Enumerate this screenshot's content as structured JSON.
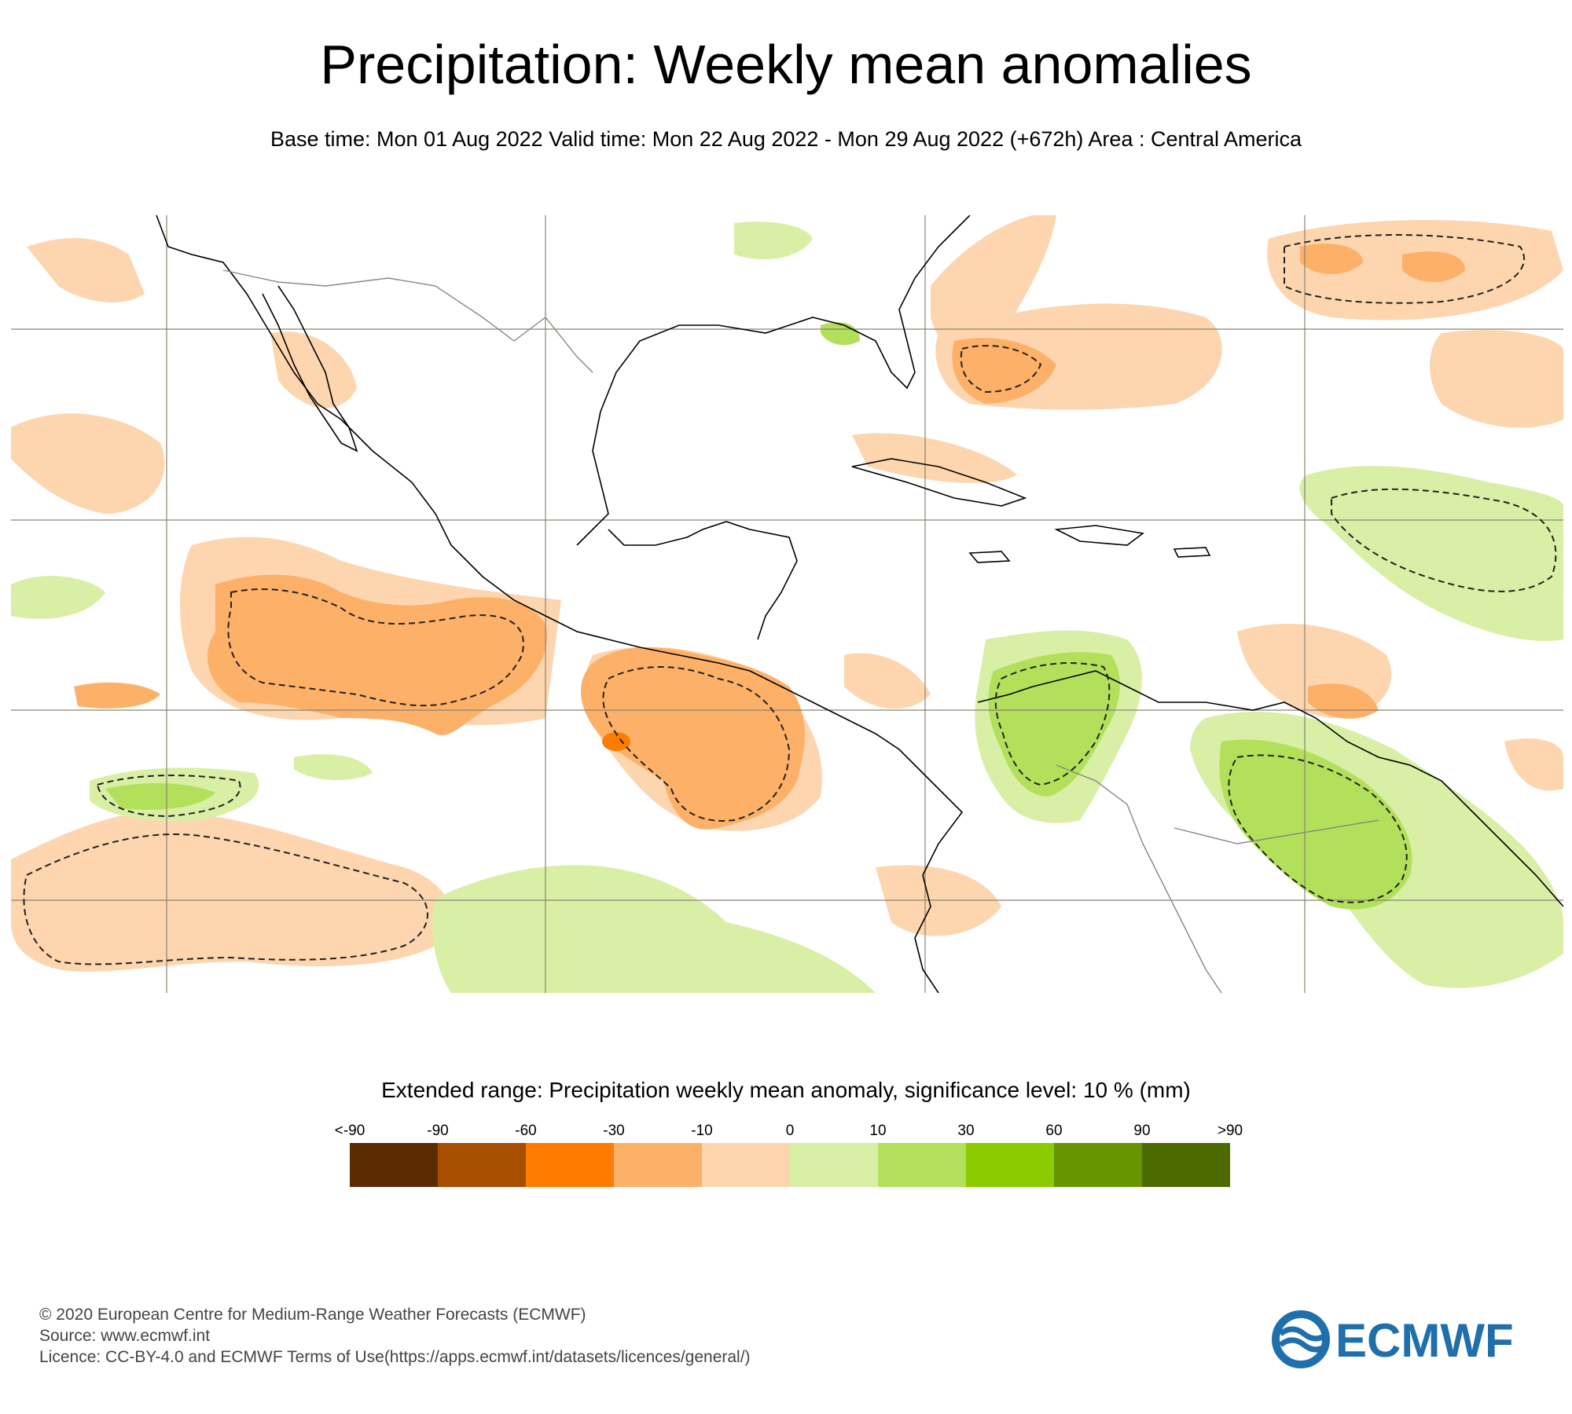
{
  "title": "Precipitation: Weekly mean anomalies",
  "subtitle": "Base time: Mon 01 Aug 2022 Valid time: Mon 22 Aug 2022 - Mon 29 Aug 2022 (+672h) Area : Central America",
  "legend": {
    "title": "Extended range: Precipitation weekly mean anomaly, significance level: 10 % (mm)",
    "labels": [
      "<-90",
      "-90",
      "-60",
      "-30",
      "-10",
      "0",
      "10",
      "30",
      "60",
      "90",
      ">90"
    ],
    "colors": [
      "#5a2c00",
      "#a84e00",
      "#ff7c00",
      "#fdb068",
      "#fdd5ae",
      "#d8efa5",
      "#b2e05a",
      "#8ccb00",
      "#669500",
      "#4d6a00"
    ]
  },
  "palette": {
    "coast": "#000000",
    "border": "#888888",
    "grid": "#8a8470",
    "contour": "#222222"
  },
  "footer": {
    "copyright": "© 2020 European Centre for Medium-Range Weather Forecasts (ECMWF)",
    "source": "Source: www.ecmwf.int",
    "licence": "Licence: CC-BY-4.0 and ECMWF Terms of Use(https://apps.ecmwf.int/datasets/licences/general/)"
  },
  "logo": {
    "text": "ECMWF",
    "color": "#1f6fad"
  }
}
